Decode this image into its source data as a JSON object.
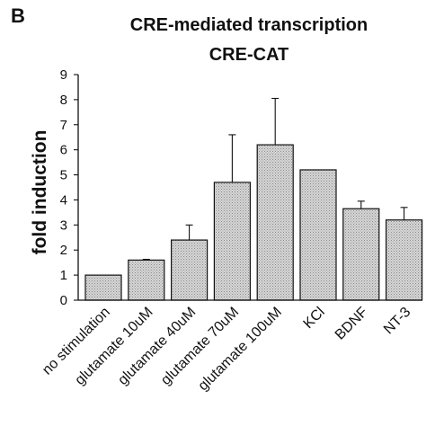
{
  "panel_letter": "B",
  "chart_data": {
    "type": "bar",
    "title": [
      "CRE-mediated transcription",
      "CRE-CAT"
    ],
    "ylabel": "fold induction",
    "xlabel": "",
    "ylim": [
      0,
      9
    ],
    "yticks": [
      0,
      1,
      2,
      3,
      4,
      5,
      6,
      7,
      8,
      9
    ],
    "categories": [
      "no stimulation",
      "glutamate 10uM",
      "glutamate 40uM",
      "glutamate 70uM",
      "glutamate 100uM",
      "KCl",
      "BDNF",
      "NT-3"
    ],
    "values": [
      1.0,
      1.6,
      2.4,
      4.7,
      6.2,
      5.2,
      3.65,
      3.2
    ],
    "errors": [
      0,
      0.03,
      0.6,
      1.9,
      1.85,
      0,
      0.3,
      0.5
    ],
    "bar_color": "#c8c8c8",
    "grid": false,
    "legend": "none"
  }
}
